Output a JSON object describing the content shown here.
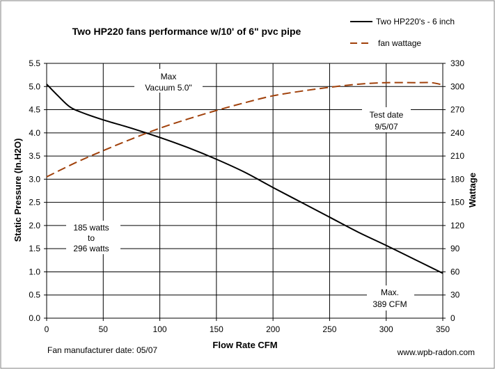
{
  "chart_data": {
    "type": "line",
    "title": "Two HP220 fans performance w/10' of 6\" pvc pipe",
    "xlabel": "Flow Rate  CFM",
    "ylabel": "Static Pressure (In.H2O)",
    "y2label": "Wattage",
    "xlim": [
      0,
      350
    ],
    "ylim": [
      0,
      5.5
    ],
    "y2lim": [
      0,
      330
    ],
    "x_ticks": [
      0,
      50,
      100,
      150,
      200,
      250,
      300,
      350
    ],
    "y_ticks": [
      0,
      0.5,
      1,
      1.5,
      2,
      2.5,
      3,
      3.5,
      4,
      4.5,
      5,
      5.5
    ],
    "y2_ticks": [
      0,
      30,
      60,
      90,
      120,
      150,
      180,
      210,
      240,
      270,
      300,
      330
    ],
    "x_tick_labels": [
      "0",
      "50",
      "100",
      "150",
      "200",
      "250",
      "300",
      "350"
    ],
    "y_tick_labels": [
      "0.0",
      "0.5",
      "1.0",
      "1.5",
      "2.0",
      "2.5",
      "3.0",
      "3.5",
      "4.0",
      "4.5",
      "5.0",
      "5.5"
    ],
    "y2_tick_labels": [
      "0",
      "30",
      "60",
      "90",
      "120",
      "150",
      "180",
      "210",
      "240",
      "270",
      "300",
      "330"
    ],
    "grid": true,
    "legend_position": "top-right",
    "series": [
      {
        "name": "Two HP220's  - 6 inch",
        "axis": "left",
        "style": "solid",
        "color": "#000000",
        "x": [
          0,
          10,
          20,
          30,
          50,
          75,
          100,
          125,
          150,
          175,
          200,
          225,
          250,
          275,
          300,
          325,
          350
        ],
        "y": [
          5.05,
          4.8,
          4.57,
          4.45,
          4.28,
          4.1,
          3.9,
          3.68,
          3.43,
          3.15,
          2.82,
          2.5,
          2.18,
          1.86,
          1.57,
          1.27,
          0.97
        ]
      },
      {
        "name": "fan wattage",
        "axis": "right",
        "style": "dashed",
        "color": "#A0400A",
        "x": [
          0,
          25,
          50,
          75,
          100,
          125,
          150,
          175,
          200,
          225,
          250,
          275,
          300,
          325,
          340,
          350
        ],
        "y": [
          183,
          201,
          217,
          232,
          246,
          258,
          269,
          279,
          288,
          294,
          299,
          303,
          305,
          305,
          305,
          302
        ]
      }
    ],
    "annotations": [
      {
        "id": "max-vacuum",
        "lines": [
          "Max",
          "Vacuum  5.0\""
        ]
      },
      {
        "id": "test-date",
        "lines": [
          "Test date",
          "9/5/07"
        ]
      },
      {
        "id": "watts-range",
        "lines": [
          "185 watts",
          "to",
          "296 watts"
        ]
      },
      {
        "id": "max-cfm",
        "lines": [
          "Max.",
          "389 CFM"
        ]
      }
    ],
    "footer_left": "Fan manufacturer date: 05/07",
    "footer_right": "www.wpb-radon.com"
  }
}
